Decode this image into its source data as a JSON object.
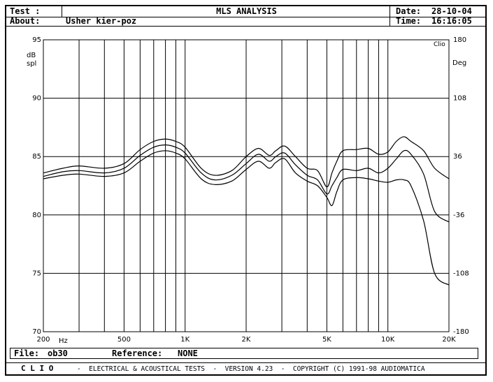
{
  "header": {
    "test_label": "Test :",
    "about_label": "About:",
    "about_value": "Usher kier-poz",
    "title": "MLS ANALYSIS",
    "date_label": "Date:",
    "date_value": "28-10-04",
    "time_label": "Time:",
    "time_value": "16:16:05"
  },
  "status": {
    "file_label": "File:",
    "file_value": "ob30",
    "reference_label": "Reference:",
    "reference_value": "NONE"
  },
  "footer": {
    "brand": "C L I O",
    "text": "-  ELECTRICAL & ACOUSTICAL TESTS  -  VERSION 4.23  -  COPYRIGHT (C) 1991-98 AUDIOMATICA"
  },
  "chart_data": {
    "type": "line",
    "x_scale": "log",
    "xlim": [
      200,
      20000
    ],
    "ylim": [
      70,
      95
    ],
    "y2lim": [
      -180,
      180
    ],
    "grid": true,
    "x_tick_labels": [
      {
        "value": 200,
        "label": "200"
      },
      {
        "value": 500,
        "label": "500"
      },
      {
        "value": 1000,
        "label": "1K"
      },
      {
        "value": 2000,
        "label": "2K"
      },
      {
        "value": 5000,
        "label": "5K"
      },
      {
        "value": 10000,
        "label": "10K"
      },
      {
        "value": 20000,
        "label": "20K"
      }
    ],
    "x_unit": "Hz",
    "y_ticks": [
      70,
      75,
      80,
      85,
      90,
      95
    ],
    "ylabel": "dB\nspl",
    "y2_ticks": [
      -180,
      -108,
      -36,
      36,
      108,
      180
    ],
    "y2label": "Deg",
    "corner_label": "Clio",
    "series": [
      {
        "x": [
          200,
          250,
          300,
          400,
          500,
          600,
          700,
          800,
          900,
          1000,
          1200,
          1400,
          1700,
          2000,
          2300,
          2600,
          2800,
          3100,
          3500,
          4000,
          4500,
          5000,
          5300,
          5600,
          6000,
          7000,
          8000,
          9000,
          10000,
          11000,
          12000,
          13000,
          15000,
          17000,
          20000
        ],
        "values": [
          83.6,
          84.0,
          84.2,
          84.0,
          84.4,
          85.6,
          86.3,
          86.5,
          86.3,
          85.8,
          84.0,
          83.4,
          83.8,
          85.0,
          85.7,
          85.1,
          85.5,
          85.9,
          85.0,
          84.0,
          83.8,
          82.4,
          83.6,
          84.6,
          85.5,
          85.6,
          85.7,
          85.2,
          85.4,
          86.3,
          86.7,
          86.3,
          85.5,
          84.0,
          83.1
        ]
      },
      {
        "x": [
          200,
          250,
          300,
          400,
          500,
          600,
          700,
          800,
          900,
          1000,
          1200,
          1400,
          1700,
          2000,
          2300,
          2600,
          2800,
          3100,
          3500,
          4000,
          4500,
          5000,
          5300,
          5600,
          6000,
          7000,
          8000,
          9000,
          10000,
          11000,
          12000,
          13000,
          15000,
          17000,
          20000
        ],
        "values": [
          83.3,
          83.7,
          83.8,
          83.6,
          84.0,
          85.1,
          85.8,
          86.0,
          85.8,
          85.3,
          83.6,
          83.0,
          83.4,
          84.4,
          85.2,
          84.6,
          85.0,
          85.3,
          84.3,
          83.4,
          83.0,
          81.8,
          82.5,
          83.2,
          83.9,
          83.8,
          84.0,
          83.6,
          84.0,
          84.8,
          85.5,
          85.2,
          83.5,
          80.3,
          79.4
        ]
      },
      {
        "x": [
          200,
          250,
          300,
          400,
          500,
          600,
          700,
          800,
          900,
          1000,
          1200,
          1400,
          1700,
          2000,
          2300,
          2600,
          2800,
          3100,
          3500,
          4000,
          4500,
          5000,
          5300,
          5600,
          6000,
          7000,
          8000,
          9000,
          10000,
          11000,
          12000,
          13000,
          15000,
          17000,
          20000
        ],
        "values": [
          83.1,
          83.4,
          83.5,
          83.3,
          83.6,
          84.6,
          85.3,
          85.5,
          85.3,
          84.8,
          83.1,
          82.6,
          82.9,
          83.9,
          84.6,
          84.0,
          84.5,
          84.8,
          83.6,
          82.9,
          82.5,
          81.5,
          80.8,
          82.0,
          83.0,
          83.2,
          83.1,
          82.9,
          82.8,
          83.0,
          83.0,
          82.5,
          79.5,
          75.0,
          74.0
        ]
      }
    ]
  }
}
